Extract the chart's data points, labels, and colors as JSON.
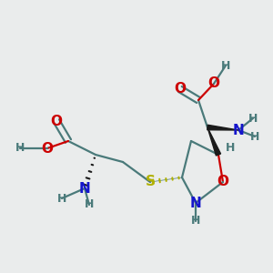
{
  "bg_color": "#eaecec",
  "bond_color": "#4a7a7a",
  "bond_width": 1.6,
  "colors": {
    "O": "#cc0000",
    "N": "#1515cc",
    "S": "#b0b000",
    "C": "#4a7a7a",
    "H": "#4a7a7a"
  }
}
